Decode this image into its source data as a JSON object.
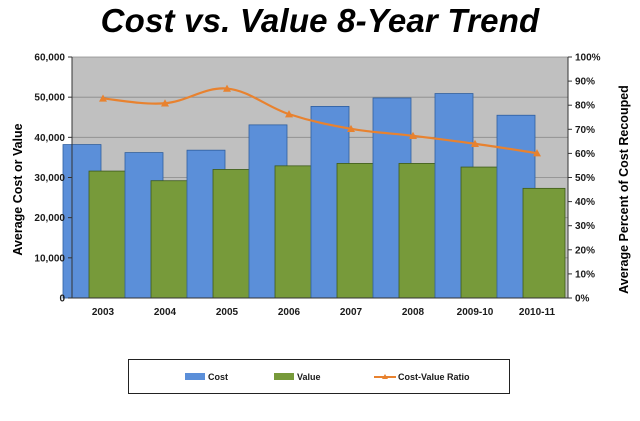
{
  "chart_data": {
    "type": "bar",
    "title": "Cost vs. Value 8-Year Trend",
    "categories": [
      "2003",
      "2004",
      "2005",
      "2006",
      "2007",
      "2008",
      "2009-10",
      "2010-11"
    ],
    "series": [
      {
        "name": "Cost",
        "type": "bar",
        "color": "#5b8fd9",
        "values": [
          38200,
          36200,
          36800,
          43100,
          47700,
          49800,
          50900,
          45500
        ]
      },
      {
        "name": "Value",
        "type": "bar",
        "color": "#779a3a",
        "values": [
          31600,
          29200,
          32000,
          32900,
          33500,
          33500,
          32600,
          27300
        ]
      },
      {
        "name": "Cost-Value Ratio",
        "type": "line",
        "color": "#e8822f",
        "axis": "right",
        "values": [
          82.8,
          80.8,
          86.9,
          76.3,
          70.2,
          67.3,
          64.0,
          60.1
        ]
      }
    ],
    "ylabel": "Average Cost or Value",
    "y2label": "Average Percent of Cost Recouped",
    "ylim": [
      0,
      60000
    ],
    "y2lim": [
      0,
      100
    ],
    "yticks": [
      "0",
      "10,000",
      "20,000",
      "30,000",
      "40,000",
      "50,000",
      "60,000"
    ],
    "y2ticks": [
      "0%",
      "10%",
      "20%",
      "30%",
      "40%",
      "50%",
      "60%",
      "70%",
      "80%",
      "90%",
      "100%"
    ],
    "grid": true,
    "plot_background": "#c0c0c0",
    "legend_position": "bottom"
  }
}
